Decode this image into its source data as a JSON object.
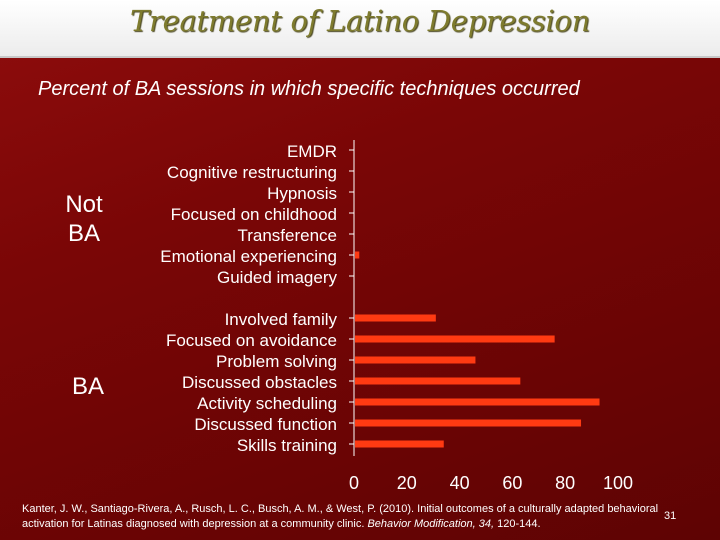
{
  "slide": {
    "title": "Treatment of Latino Depression",
    "subtitle": "Percent of BA sessions in which specific techniques occurred",
    "group_not_ba": "Not BA",
    "group_ba": "BA",
    "citation_plain": "Kanter, J. W., Santiago-Rivera, A., Rusch, L. C., Busch, A. M., & West, P. (2010). Initial outcomes of a culturally adapted behavioral activation for Latinas diagnosed with depression at a community clinic. ",
    "citation_journal": "Behavior Modification, 34,",
    "citation_pages": " 120-144.",
    "page_number": "31"
  },
  "colors": {
    "bar": "#ff3a12",
    "label": "#ffffff",
    "axis": "#ffffff"
  },
  "chart_data": {
    "type": "bar",
    "orientation": "horizontal",
    "categories": [
      "EMDR",
      "Cognitive restructuring",
      "Hypnosis",
      "Focused on childhood",
      "Transference",
      "Emotional experiencing",
      "Guided imagery",
      "Involved family",
      "Focused on avoidance",
      "Problem solving",
      "Discussed obstacles",
      "Activity scheduling",
      "Discussed function",
      "Skills training"
    ],
    "groups": [
      "Not BA",
      "Not BA",
      "Not BA",
      "Not BA",
      "Not BA",
      "Not BA",
      "Not BA",
      "BA",
      "BA",
      "BA",
      "BA",
      "BA",
      "BA",
      "BA"
    ],
    "values": [
      0,
      0,
      0,
      0,
      0,
      2,
      0,
      31,
      76,
      46,
      63,
      93,
      86,
      34
    ],
    "xlim": [
      0,
      100
    ],
    "xticks": [
      0,
      20,
      40,
      60,
      80,
      100
    ],
    "xlabel": "",
    "ylabel": "",
    "grid": false
  }
}
